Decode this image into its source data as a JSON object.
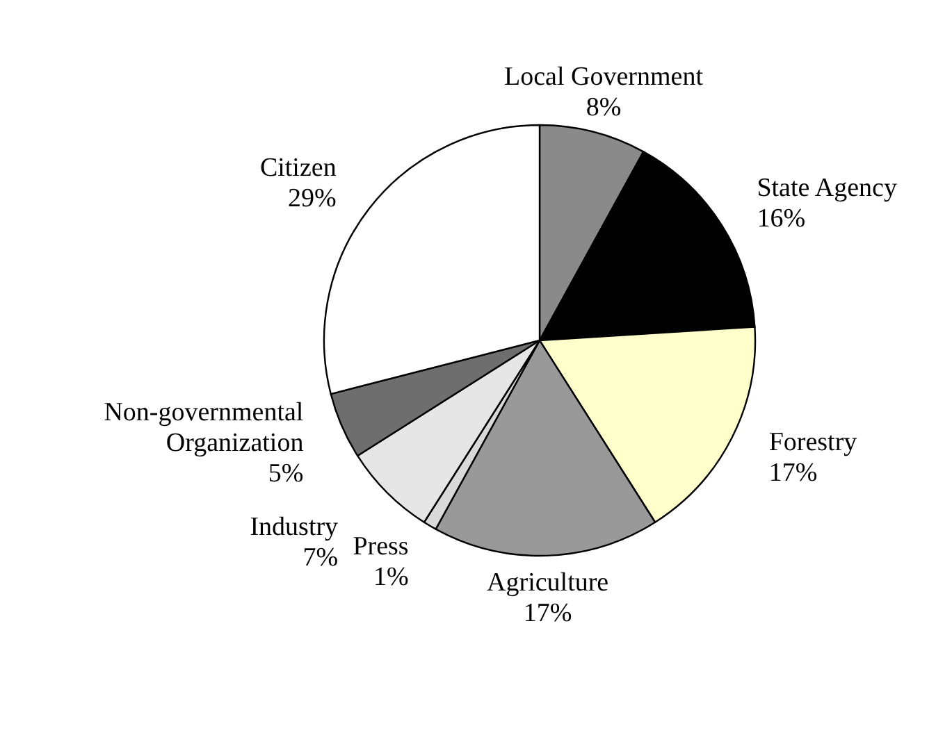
{
  "chart_data": {
    "type": "pie",
    "categories": [
      "Local Government",
      "State Agency",
      "Forestry",
      "Agriculture",
      "Press",
      "Industry",
      "Non-governmental Organization",
      "Citizen"
    ],
    "values": [
      8,
      16,
      17,
      17,
      1,
      7,
      5,
      29
    ],
    "colors": [
      "#8a8a8a",
      "#000000",
      "#ffffcc",
      "#999999",
      "#d9d9d9",
      "#e6e6e6",
      "#6e6e6e",
      "#ffffff"
    ],
    "value_labels": [
      "8%",
      "16%",
      "17%",
      "17%",
      "1%",
      "7%",
      "5%",
      "29%"
    ]
  }
}
